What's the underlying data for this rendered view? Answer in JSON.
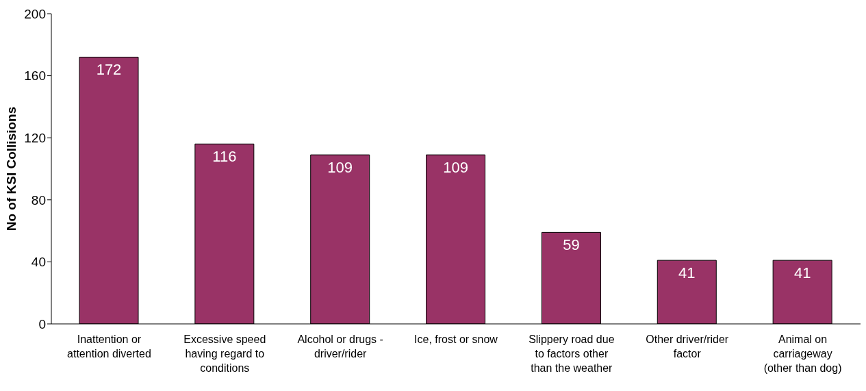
{
  "chart_data": {
    "type": "bar",
    "ylabel": "No of KSI Collisions",
    "categories": [
      "Inattention or attention diverted",
      "Excessive speed having regard to conditions",
      "Alcohol or drugs - driver/rider",
      "Ice, frost or snow",
      "Slippery road due to factors other than the weather",
      "Other driver/rider factor",
      "Animal on carriageway (other than dog)"
    ],
    "values": [
      172,
      116,
      109,
      109,
      59,
      41,
      41
    ],
    "color": "#993366",
    "ylim": [
      0,
      200
    ],
    "yticks": [
      0,
      40,
      80,
      120,
      160,
      200
    ],
    "grid": false,
    "legend": false,
    "data_labels": true
  }
}
